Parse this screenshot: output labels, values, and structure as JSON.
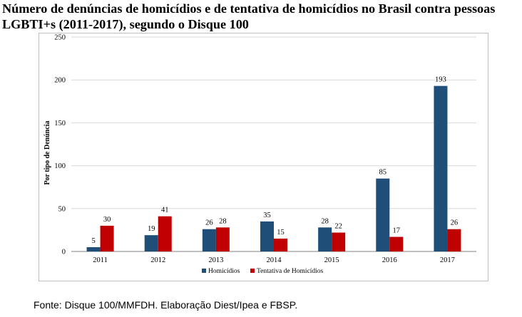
{
  "header": {
    "title": "Número de denúncias de homicídios e de tentativa de homicídios no Brasil contra pessoas LGBTI+s (2011-2017), segundo o Disque 100"
  },
  "footer": {
    "source": "Fonte: Disque 100/MMFDH. Elaboração Diest/Ipea e FBSP."
  },
  "chart_data": {
    "type": "bar",
    "categories": [
      "2011",
      "2012",
      "2013",
      "2014",
      "2015",
      "2016",
      "2017"
    ],
    "series": [
      {
        "name": "Homicídios",
        "values": [
          5,
          19,
          26,
          35,
          28,
          85,
          193
        ],
        "color": "#1f4e79"
      },
      {
        "name": "Tentativa de Homicídios",
        "values": [
          30,
          41,
          28,
          15,
          22,
          17,
          26
        ],
        "color": "#c00000"
      }
    ],
    "title": "",
    "xlabel": "",
    "ylabel": "Por tipo de Denúncia",
    "ylim": [
      0,
      250
    ],
    "yticks": [
      0,
      50,
      100,
      150,
      200,
      250
    ],
    "grid": true,
    "legend": "bottom",
    "data_labels": true
  }
}
